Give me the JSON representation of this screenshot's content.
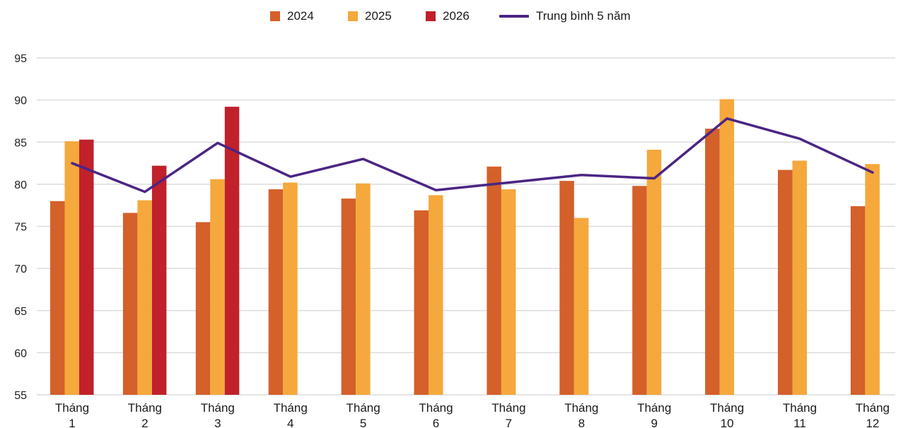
{
  "chart_data": {
    "type": "bar",
    "categories": [
      "Tháng 1",
      "Tháng 2",
      "Tháng 3",
      "Tháng 4",
      "Tháng 5",
      "Tháng 6",
      "Tháng 7",
      "Tháng 8",
      "Tháng 9",
      "Tháng 10",
      "Tháng 11",
      "Tháng 12"
    ],
    "category_lines": [
      [
        "Tháng",
        "1"
      ],
      [
        "Tháng",
        "2"
      ],
      [
        "Tháng",
        "3"
      ],
      [
        "Tháng",
        "4"
      ],
      [
        "Tháng",
        "5"
      ],
      [
        "Tháng",
        "6"
      ],
      [
        "Tháng",
        "7"
      ],
      [
        "Tháng",
        "8"
      ],
      [
        "Tháng",
        "9"
      ],
      [
        "Tháng",
        "10"
      ],
      [
        "Tháng",
        "11"
      ],
      [
        "Tháng",
        "12"
      ]
    ],
    "series": [
      {
        "name": "2024",
        "type": "bar",
        "color": "#d4602a",
        "values": [
          78.0,
          76.6,
          75.5,
          79.4,
          78.3,
          76.9,
          82.1,
          80.4,
          79.8,
          86.6,
          81.7,
          77.4
        ]
      },
      {
        "name": "2025",
        "type": "bar",
        "color": "#f5a83c",
        "values": [
          85.1,
          78.1,
          80.6,
          80.2,
          80.1,
          78.7,
          79.4,
          76.0,
          84.1,
          90.1,
          82.8,
          82.4
        ]
      },
      {
        "name": "2026",
        "type": "bar",
        "color": "#c0212b",
        "values": [
          85.3,
          82.2,
          89.2,
          null,
          null,
          null,
          null,
          null,
          null,
          null,
          null,
          null
        ]
      },
      {
        "name": "Trung bình 5 năm",
        "type": "line",
        "color": "#4b2584",
        "values": [
          82.5,
          79.1,
          84.9,
          80.9,
          83.0,
          79.3,
          80.2,
          81.1,
          80.7,
          87.8,
          85.4,
          81.4
        ]
      }
    ],
    "yticks": [
      55,
      60,
      65,
      70,
      75,
      80,
      85,
      90,
      95
    ],
    "ylim": [
      55,
      95
    ],
    "grid": true,
    "legend_position": "top-center",
    "title": "",
    "xlabel": "",
    "ylabel": ""
  }
}
